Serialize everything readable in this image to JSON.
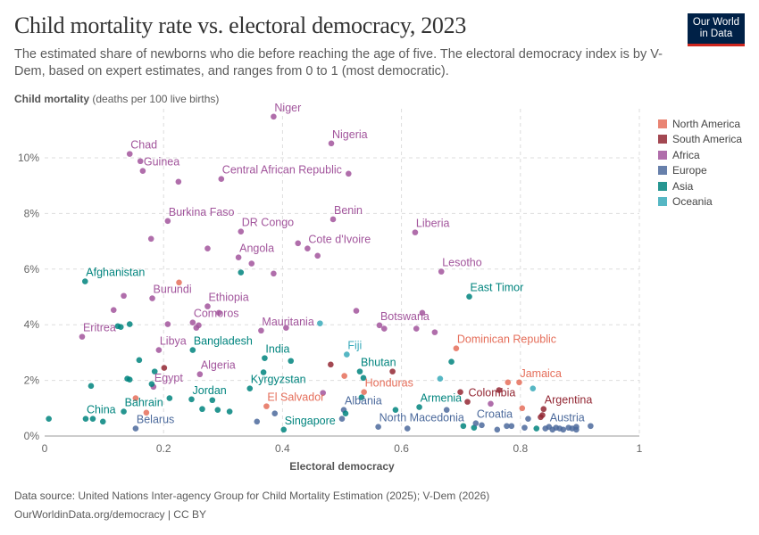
{
  "header": {
    "title": "Child mortality rate vs. electoral democracy, 2023",
    "subtitle": "The estimated share of newborns who die before reaching the age of five. The electoral democracy index is by V-Dem, based on expert estimates, and ranges from 0 to 1 (most democratic).",
    "logo": "Our World in Data"
  },
  "footer": {
    "source_label": "Data source:",
    "source": "United Nations Inter-agency Group for Child Mortality Estimation (2025); V-Dem (2026)",
    "license": "OurWorldinData.org/democracy | CC BY"
  },
  "chart_data": {
    "type": "scatter",
    "title": "Child mortality rate vs. electoral democracy, 2023",
    "ylabel_bold": "Child mortality",
    "ylabel_unit": "(deaths per 100 live births)",
    "xlabel": "Electoral democracy",
    "xlim": [
      0,
      1
    ],
    "ylim": [
      0,
      11.5
    ],
    "xticks": [
      "0",
      "0.2",
      "0.4",
      "0.6",
      "0.8",
      "1"
    ],
    "yticks": [
      "0%",
      "2%",
      "4%",
      "6%",
      "8%",
      "10%"
    ],
    "grid": true,
    "legend_position": "right",
    "regions": [
      {
        "name": "North America",
        "color": "#E56E5A"
      },
      {
        "name": "South America",
        "color": "#932834"
      },
      {
        "name": "Africa",
        "color": "#A2559C"
      },
      {
        "name": "Europe",
        "color": "#4C6A9C"
      },
      {
        "name": "Asia",
        "color": "#00847E"
      },
      {
        "name": "Oceania",
        "color": "#38AABA"
      }
    ],
    "points": [
      {
        "x": 0.385,
        "y": 11.48,
        "r": "Africa",
        "label": "Niger"
      },
      {
        "x": 0.482,
        "y": 10.52,
        "r": "Africa",
        "label": "Nigeria"
      },
      {
        "x": 0.143,
        "y": 10.14,
        "r": "Africa",
        "label": "Chad"
      },
      {
        "x": 0.161,
        "y": 9.88,
        "r": "Africa"
      },
      {
        "x": 0.165,
        "y": 9.53,
        "r": "Africa",
        "label": "Guinea"
      },
      {
        "x": 0.225,
        "y": 9.14,
        "r": "Africa"
      },
      {
        "x": 0.297,
        "y": 9.24,
        "r": "Africa",
        "label": "Central African Republic"
      },
      {
        "x": 0.511,
        "y": 9.43,
        "r": "Africa"
      },
      {
        "x": 0.207,
        "y": 7.73,
        "r": "Africa",
        "label": "Burkina Faso"
      },
      {
        "x": 0.33,
        "y": 7.35,
        "r": "Africa",
        "label": "DR Congo"
      },
      {
        "x": 0.179,
        "y": 7.09,
        "r": "Africa"
      },
      {
        "x": 0.274,
        "y": 6.74,
        "r": "Africa"
      },
      {
        "x": 0.326,
        "y": 6.42,
        "r": "Africa",
        "label": "Angola"
      },
      {
        "x": 0.348,
        "y": 6.2,
        "r": "Africa"
      },
      {
        "x": 0.485,
        "y": 7.79,
        "r": "Africa",
        "label": "Benin"
      },
      {
        "x": 0.442,
        "y": 6.74,
        "r": "Africa",
        "label": "Cote d'Ivoire"
      },
      {
        "x": 0.426,
        "y": 6.93,
        "r": "Africa"
      },
      {
        "x": 0.459,
        "y": 6.48,
        "r": "Africa"
      },
      {
        "x": 0.623,
        "y": 7.32,
        "r": "Africa",
        "label": "Liberia"
      },
      {
        "x": 0.667,
        "y": 5.91,
        "r": "Africa",
        "label": "Lesotho"
      },
      {
        "x": 0.33,
        "y": 5.88,
        "r": "Asia"
      },
      {
        "x": 0.385,
        "y": 5.84,
        "r": "Africa"
      },
      {
        "x": 0.068,
        "y": 5.56,
        "r": "Asia",
        "label": "Afghanistan"
      },
      {
        "x": 0.226,
        "y": 5.52,
        "r": "North America"
      },
      {
        "x": 0.133,
        "y": 5.04,
        "r": "Africa"
      },
      {
        "x": 0.181,
        "y": 4.95,
        "r": "Africa",
        "label": "Burundi"
      },
      {
        "x": 0.274,
        "y": 4.66,
        "r": "Africa",
        "label": "Ethiopia"
      },
      {
        "x": 0.293,
        "y": 4.43,
        "r": "Africa"
      },
      {
        "x": 0.116,
        "y": 4.53,
        "r": "Africa"
      },
      {
        "x": 0.123,
        "y": 3.95,
        "r": "Asia"
      },
      {
        "x": 0.128,
        "y": 3.92,
        "r": "Asia"
      },
      {
        "x": 0.143,
        "y": 4.02,
        "r": "Asia"
      },
      {
        "x": 0.207,
        "y": 4.02,
        "r": "Africa"
      },
      {
        "x": 0.249,
        "y": 4.08,
        "r": "Africa",
        "label": "Comoros"
      },
      {
        "x": 0.259,
        "y": 3.98,
        "r": "Africa"
      },
      {
        "x": 0.255,
        "y": 3.89,
        "r": "Africa"
      },
      {
        "x": 0.063,
        "y": 3.57,
        "r": "Africa",
        "label": "Eritrea"
      },
      {
        "x": 0.364,
        "y": 3.79,
        "r": "Africa",
        "label": "Mauritania"
      },
      {
        "x": 0.406,
        "y": 3.89,
        "r": "Africa"
      },
      {
        "x": 0.463,
        "y": 4.05,
        "r": "Oceania"
      },
      {
        "x": 0.192,
        "y": 3.09,
        "r": "Africa",
        "label": "Libya"
      },
      {
        "x": 0.249,
        "y": 3.09,
        "r": "Asia",
        "label": "Bangladesh"
      },
      {
        "x": 0.37,
        "y": 2.8,
        "r": "Asia",
        "label": "India"
      },
      {
        "x": 0.414,
        "y": 2.7,
        "r": "Asia"
      },
      {
        "x": 0.159,
        "y": 2.73,
        "r": "Asia"
      },
      {
        "x": 0.201,
        "y": 2.45,
        "r": "South America"
      },
      {
        "x": 0.481,
        "y": 2.57,
        "r": "South America"
      },
      {
        "x": 0.185,
        "y": 2.32,
        "r": "Asia"
      },
      {
        "x": 0.261,
        "y": 2.22,
        "r": "Africa",
        "label": "Algeria"
      },
      {
        "x": 0.368,
        "y": 2.29,
        "r": "Asia"
      },
      {
        "x": 0.139,
        "y": 2.06,
        "r": "Asia"
      },
      {
        "x": 0.143,
        "y": 2.03,
        "r": "Asia"
      },
      {
        "x": 0.183,
        "y": 1.77,
        "r": "Africa",
        "label": "Egypt"
      },
      {
        "x": 0.18,
        "y": 1.87,
        "r": "Asia"
      },
      {
        "x": 0.078,
        "y": 1.8,
        "r": "Asia"
      },
      {
        "x": 0.345,
        "y": 1.71,
        "r": "Asia",
        "label": "Kyrgyzstan"
      },
      {
        "x": 0.468,
        "y": 1.55,
        "r": "Africa"
      },
      {
        "x": 0.153,
        "y": 1.36,
        "r": "North America"
      },
      {
        "x": 0.21,
        "y": 1.36,
        "r": "Asia"
      },
      {
        "x": 0.247,
        "y": 1.32,
        "r": "Asia",
        "label": "Jordan"
      },
      {
        "x": 0.282,
        "y": 1.29,
        "r": "Asia"
      },
      {
        "x": 0.373,
        "y": 1.07,
        "r": "North America",
        "label": "El Salvador"
      },
      {
        "x": 0.265,
        "y": 0.97,
        "r": "Asia"
      },
      {
        "x": 0.291,
        "y": 0.94,
        "r": "Asia"
      },
      {
        "x": 0.311,
        "y": 0.88,
        "r": "Asia"
      },
      {
        "x": 0.133,
        "y": 0.88,
        "r": "Asia",
        "label": "Bahrain"
      },
      {
        "x": 0.171,
        "y": 0.84,
        "r": "North America"
      },
      {
        "x": 0.387,
        "y": 0.81,
        "r": "Europe"
      },
      {
        "x": 0.069,
        "y": 0.62,
        "r": "Asia",
        "label": "China"
      },
      {
        "x": 0.081,
        "y": 0.62,
        "r": "Asia"
      },
      {
        "x": 0.098,
        "y": 0.52,
        "r": "Asia"
      },
      {
        "x": 0.007,
        "y": 0.62,
        "r": "Asia"
      },
      {
        "x": 0.357,
        "y": 0.52,
        "r": "Europe"
      },
      {
        "x": 0.153,
        "y": 0.27,
        "r": "Europe",
        "label": "Belarus"
      },
      {
        "x": 0.402,
        "y": 0.23,
        "r": "Asia",
        "label": "Singapore"
      },
      {
        "x": 0.714,
        "y": 5.01,
        "r": "Asia",
        "label": "East Timor"
      },
      {
        "x": 0.524,
        "y": 4.5,
        "r": "Africa"
      },
      {
        "x": 0.635,
        "y": 4.43,
        "r": "Africa"
      },
      {
        "x": 0.563,
        "y": 3.98,
        "r": "Africa",
        "label": "Botswana"
      },
      {
        "x": 0.571,
        "y": 3.86,
        "r": "Africa"
      },
      {
        "x": 0.625,
        "y": 3.86,
        "r": "Africa"
      },
      {
        "x": 0.656,
        "y": 3.73,
        "r": "Africa"
      },
      {
        "x": 0.692,
        "y": 3.15,
        "r": "North America",
        "label": "Dominican Republic"
      },
      {
        "x": 0.508,
        "y": 2.93,
        "r": "Oceania",
        "label": "Fiji"
      },
      {
        "x": 0.684,
        "y": 2.67,
        "r": "Asia"
      },
      {
        "x": 0.53,
        "y": 2.32,
        "r": "Asia",
        "label": "Bhutan"
      },
      {
        "x": 0.585,
        "y": 2.32,
        "r": "South America"
      },
      {
        "x": 0.504,
        "y": 2.16,
        "r": "North America"
      },
      {
        "x": 0.536,
        "y": 2.09,
        "r": "Asia"
      },
      {
        "x": 0.665,
        "y": 2.06,
        "r": "Oceania"
      },
      {
        "x": 0.779,
        "y": 1.93,
        "r": "North America"
      },
      {
        "x": 0.798,
        "y": 1.93,
        "r": "North America",
        "label": "Jamaica"
      },
      {
        "x": 0.821,
        "y": 1.71,
        "r": "Oceania"
      },
      {
        "x": 0.537,
        "y": 1.58,
        "r": "North America",
        "label": "Honduras"
      },
      {
        "x": 0.699,
        "y": 1.58,
        "r": "South America"
      },
      {
        "x": 0.764,
        "y": 1.65,
        "r": "South America"
      },
      {
        "x": 0.533,
        "y": 1.39,
        "r": "Asia"
      },
      {
        "x": 0.711,
        "y": 1.23,
        "r": "South America",
        "label": "Colombia"
      },
      {
        "x": 0.75,
        "y": 1.16,
        "r": "Africa"
      },
      {
        "x": 0.59,
        "y": 0.94,
        "r": "Asia"
      },
      {
        "x": 0.63,
        "y": 1.04,
        "r": "Asia",
        "label": "Armenia"
      },
      {
        "x": 0.676,
        "y": 0.94,
        "r": "Europe"
      },
      {
        "x": 0.803,
        "y": 1.0,
        "r": "North America"
      },
      {
        "x": 0.839,
        "y": 0.97,
        "r": "South America",
        "label": "Argentina"
      },
      {
        "x": 0.837,
        "y": 0.75,
        "r": "South America"
      },
      {
        "x": 0.834,
        "y": 0.68,
        "r": "South America"
      },
      {
        "x": 0.503,
        "y": 0.94,
        "r": "Europe",
        "label": "Albania"
      },
      {
        "x": 0.506,
        "y": 0.81,
        "r": "Asia"
      },
      {
        "x": 0.5,
        "y": 0.62,
        "r": "Europe"
      },
      {
        "x": 0.561,
        "y": 0.33,
        "r": "Europe",
        "label": "North Macedonia"
      },
      {
        "x": 0.61,
        "y": 0.27,
        "r": "Europe"
      },
      {
        "x": 0.704,
        "y": 0.36,
        "r": "Asia"
      },
      {
        "x": 0.722,
        "y": 0.3,
        "r": "Asia"
      },
      {
        "x": 0.725,
        "y": 0.46,
        "r": "Europe",
        "label": "Croatia"
      },
      {
        "x": 0.735,
        "y": 0.39,
        "r": "Europe"
      },
      {
        "x": 0.761,
        "y": 0.23,
        "r": "Europe"
      },
      {
        "x": 0.777,
        "y": 0.36,
        "r": "Europe"
      },
      {
        "x": 0.785,
        "y": 0.36,
        "r": "Europe"
      },
      {
        "x": 0.807,
        "y": 0.3,
        "r": "Europe"
      },
      {
        "x": 0.813,
        "y": 0.62,
        "r": "Europe"
      },
      {
        "x": 0.827,
        "y": 0.27,
        "r": "Asia"
      },
      {
        "x": 0.842,
        "y": 0.27,
        "r": "Europe"
      },
      {
        "x": 0.848,
        "y": 0.33,
        "r": "Europe",
        "label": "Austria"
      },
      {
        "x": 0.854,
        "y": 0.23,
        "r": "Europe"
      },
      {
        "x": 0.86,
        "y": 0.3,
        "r": "Europe"
      },
      {
        "x": 0.866,
        "y": 0.27,
        "r": "Europe"
      },
      {
        "x": 0.872,
        "y": 0.23,
        "r": "Europe"
      },
      {
        "x": 0.881,
        "y": 0.3,
        "r": "Europe"
      },
      {
        "x": 0.887,
        "y": 0.27,
        "r": "Europe"
      },
      {
        "x": 0.894,
        "y": 0.33,
        "r": "Europe"
      },
      {
        "x": 0.894,
        "y": 0.23,
        "r": "Europe"
      },
      {
        "x": 0.918,
        "y": 0.36,
        "r": "Europe"
      }
    ]
  }
}
